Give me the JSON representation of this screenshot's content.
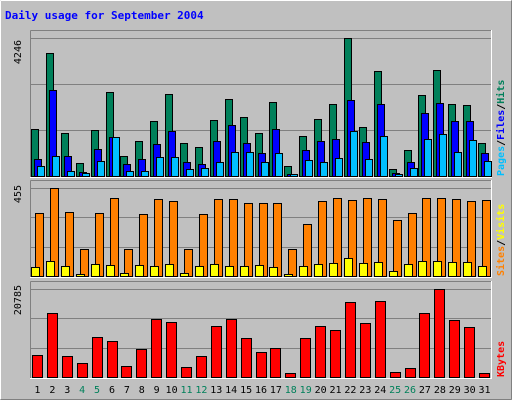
{
  "chart_data": [
    {
      "type": "bar",
      "title": "Daily usage for September 2004",
      "panel": "top",
      "ytick_max_label": "4246",
      "ylim": [
        0,
        4246
      ],
      "categories": [
        "1",
        "2",
        "3",
        "4",
        "5",
        "6",
        "7",
        "8",
        "9",
        "10",
        "11",
        "12",
        "13",
        "14",
        "15",
        "16",
        "17",
        "18",
        "19",
        "20",
        "21",
        "22",
        "23",
        "24",
        "25",
        "26",
        "27",
        "28",
        "29",
        "30",
        "31"
      ],
      "weekend_days": [
        "4",
        "5",
        "11",
        "12",
        "18",
        "19",
        "25",
        "26"
      ],
      "series": [
        {
          "name": "Hits",
          "color": "#00805a",
          "values": [
            1450,
            3780,
            1330,
            410,
            1420,
            2590,
            620,
            1070,
            1700,
            2510,
            1030,
            890,
            1730,
            2380,
            1830,
            1330,
            2290,
            300,
            1230,
            1740,
            2210,
            4246,
            1500,
            3230,
            210,
            810,
            2490,
            3260,
            2230,
            2190,
            1000
          ]
        },
        {
          "name": "Files",
          "color": "#0000ff",
          "values": [
            520,
            2660,
            600,
            130,
            820,
            1210,
            370,
            530,
            990,
            1380,
            420,
            370,
            1090,
            1560,
            1020,
            700,
            1440,
            70,
            800,
            1070,
            1150,
            2330,
            1060,
            2210,
            90,
            420,
            1930,
            2240,
            1690,
            1690,
            700
          ]
        },
        {
          "name": "Pages",
          "color": "#00bfff",
          "values": [
            300,
            610,
            140,
            80,
            450,
            1200,
            150,
            150,
            590,
            580,
            200,
            250,
            420,
            740,
            730,
            420,
            700,
            50,
            500,
            430,
            540,
            1390,
            520,
            1240,
            60,
            240,
            1150,
            1300,
            730,
            1110,
            460
          ]
        }
      ],
      "legend": [
        "Pages",
        "Files",
        "Hits"
      ],
      "legend_separator": "/"
    },
    {
      "type": "bar",
      "panel": "middle",
      "ytick_max_label": "455",
      "ylim": [
        0,
        455
      ],
      "categories": [
        "1",
        "2",
        "3",
        "4",
        "5",
        "6",
        "7",
        "8",
        "9",
        "10",
        "11",
        "12",
        "13",
        "14",
        "15",
        "16",
        "17",
        "18",
        "19",
        "20",
        "21",
        "22",
        "23",
        "24",
        "25",
        "26",
        "27",
        "28",
        "29",
        "30",
        "31"
      ],
      "series": [
        {
          "name": "Visits",
          "color": "#ffff00",
          "values": [
            45,
            75,
            50,
            10,
            60,
            55,
            15,
            55,
            50,
            60,
            15,
            50,
            60,
            50,
            50,
            55,
            45,
            10,
            50,
            60,
            65,
            95,
            65,
            70,
            25,
            60,
            75,
            80,
            70,
            70,
            50
          ]
        },
        {
          "name": "Sites",
          "color": "#ff8000",
          "values": [
            325,
            455,
            330,
            140,
            325,
            405,
            140,
            320,
            400,
            390,
            140,
            320,
            400,
            400,
            380,
            380,
            375,
            140,
            270,
            390,
            405,
            395,
            405,
            400,
            290,
            325,
            405,
            405,
            400,
            390,
            395
          ]
        }
      ],
      "legend": [
        "Sites",
        "Visits"
      ],
      "legend_separator": "/"
    },
    {
      "type": "bar",
      "panel": "bottom",
      "ytick_max_label": "20785",
      "ylim": [
        0,
        20785
      ],
      "categories": [
        "1",
        "2",
        "3",
        "4",
        "5",
        "6",
        "7",
        "8",
        "9",
        "10",
        "11",
        "12",
        "13",
        "14",
        "15",
        "16",
        "17",
        "18",
        "19",
        "20",
        "21",
        "22",
        "23",
        "24",
        "25",
        "26",
        "27",
        "28",
        "29",
        "30",
        "31"
      ],
      "series": [
        {
          "name": "KBytes",
          "color": "#ff0000",
          "values": [
            5200,
            15000,
            4900,
            3200,
            9500,
            8500,
            2500,
            6600,
            13800,
            13100,
            2300,
            4900,
            12100,
            13800,
            9200,
            6000,
            6900,
            1000,
            9300,
            12000,
            11100,
            17600,
            12700,
            17900,
            1100,
            2100,
            15000,
            20785,
            13500,
            11700,
            1000
          ]
        }
      ],
      "legend": [
        "KBytes"
      ]
    }
  ]
}
